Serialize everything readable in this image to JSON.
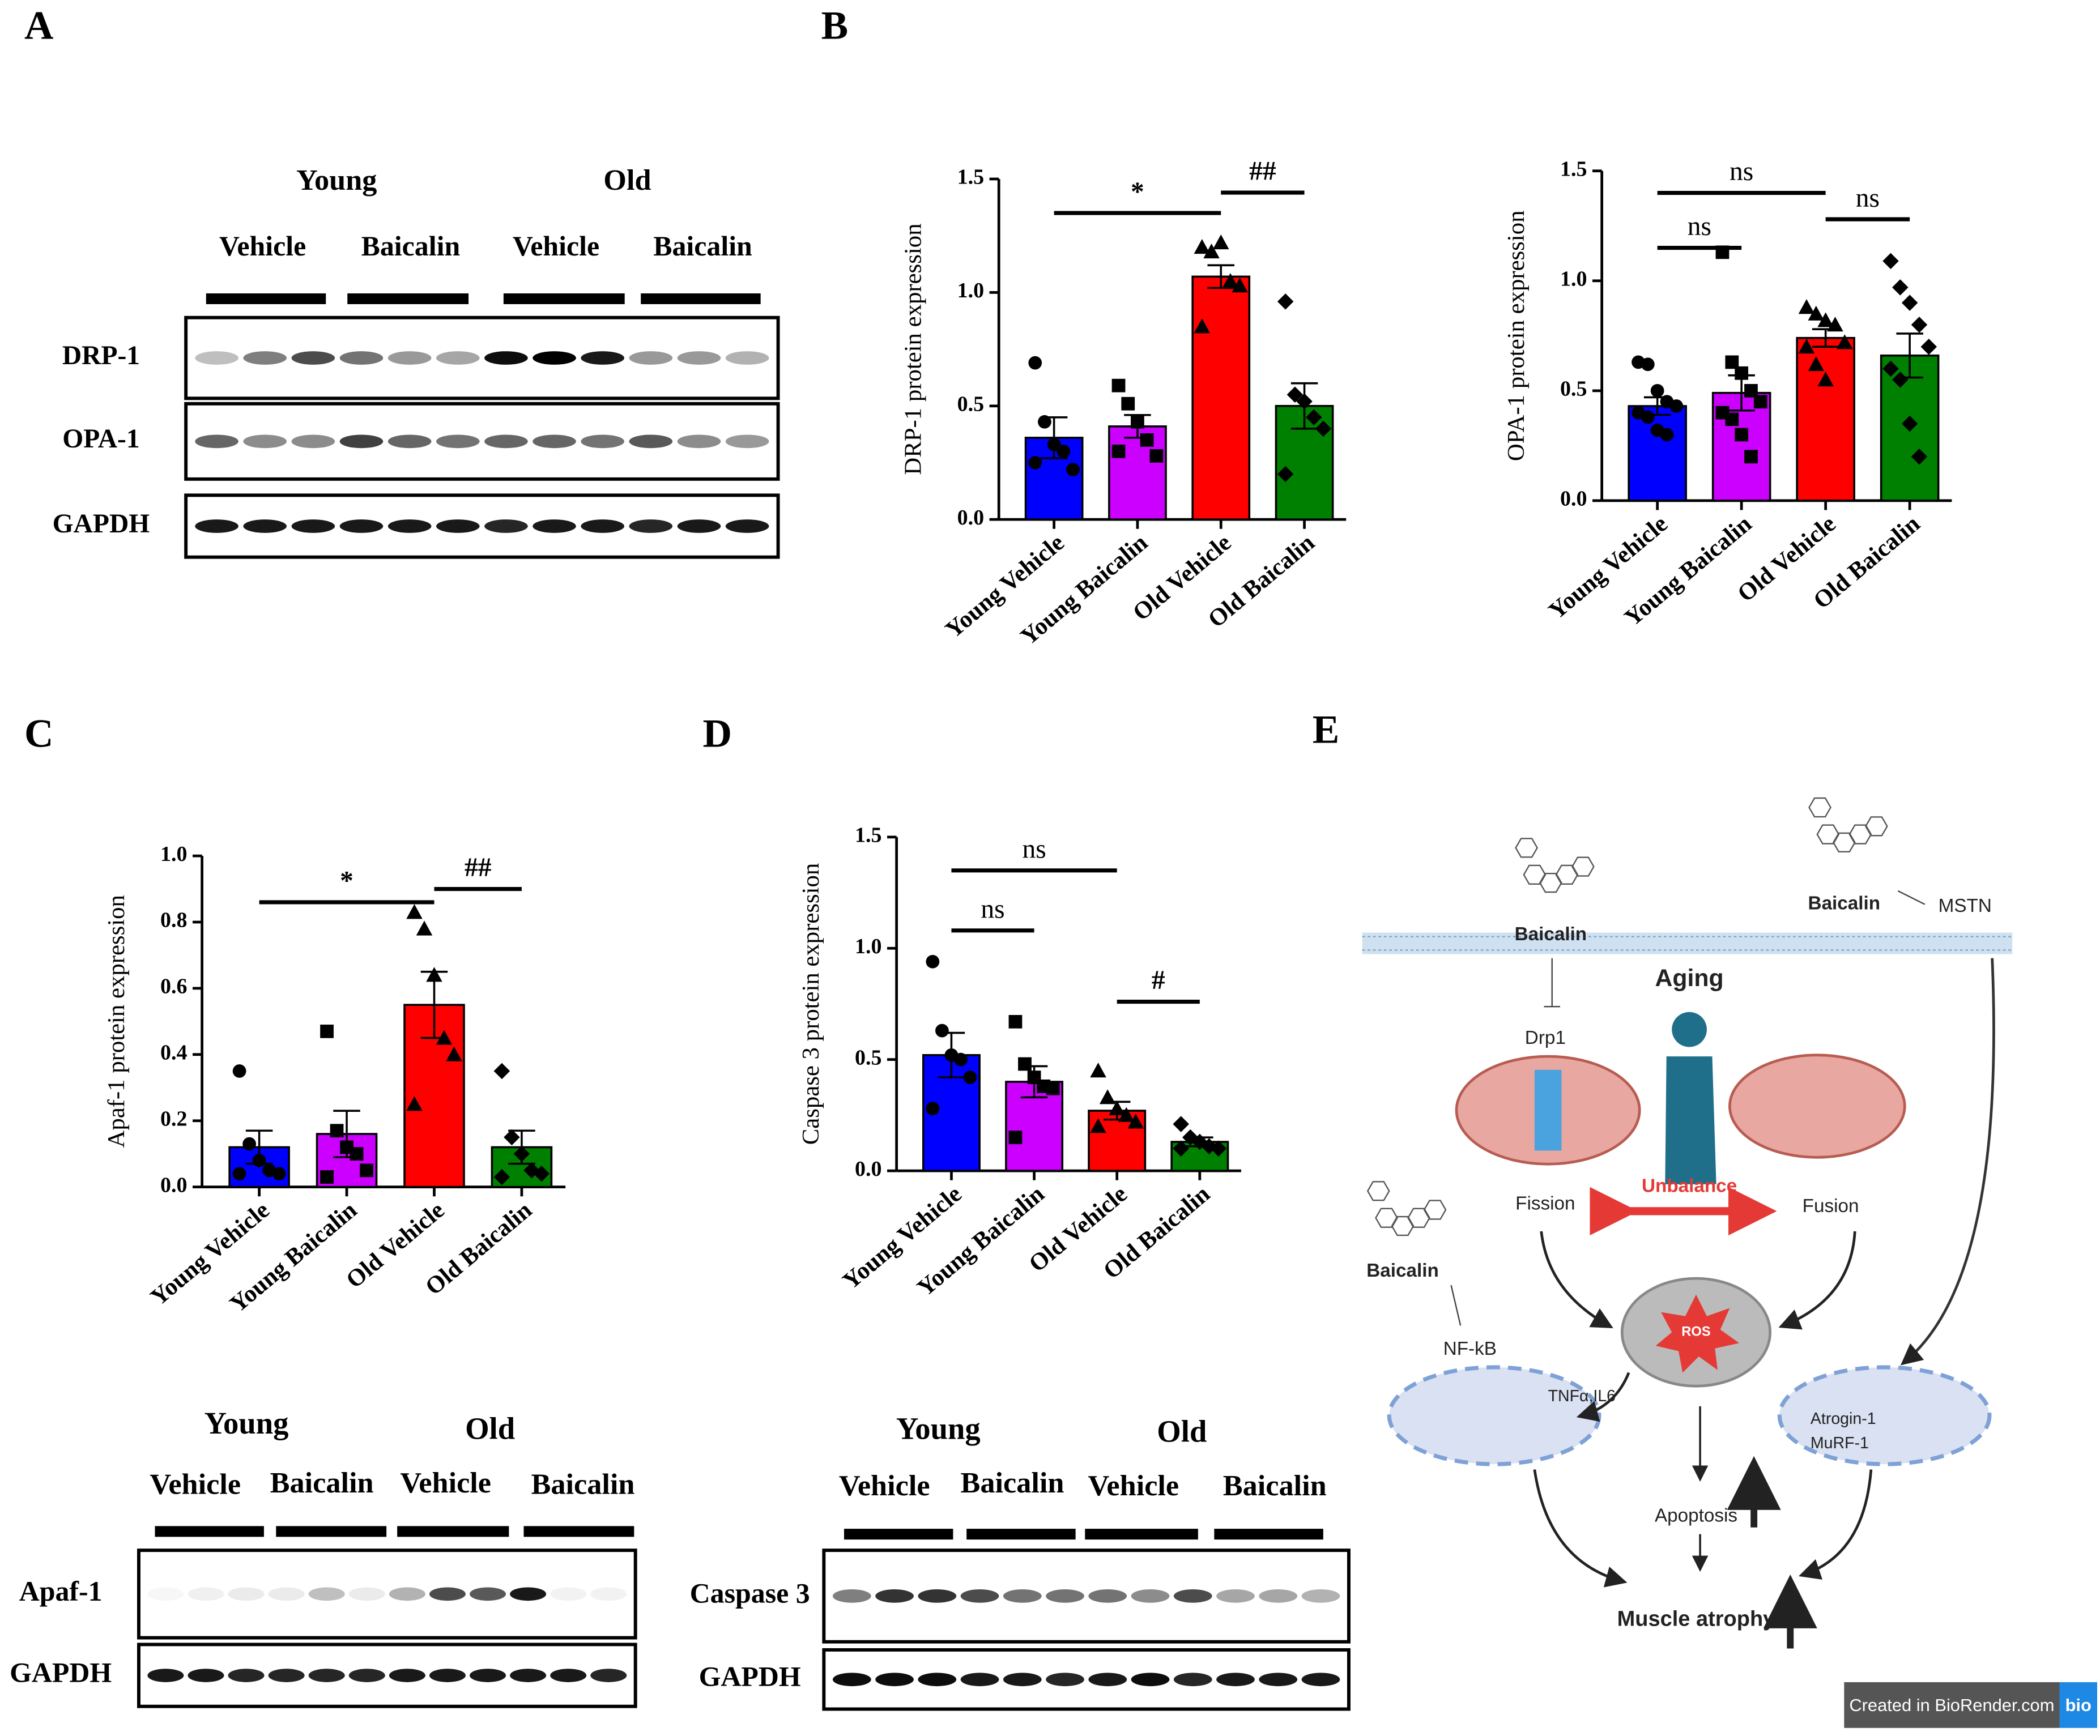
{
  "panel_labels": [
    "A",
    "B",
    "C",
    "D",
    "E"
  ],
  "chart_data": [
    {
      "type": "bar",
      "ylabel": "DRP-1 protein expression",
      "categories": [
        "Young Vehicle",
        "Young Baicalin",
        "Old Vehicle",
        "Old Baicalin"
      ],
      "values": [
        0.36,
        0.41,
        1.07,
        0.5
      ],
      "errors": [
        0.09,
        0.05,
        0.05,
        0.1
      ],
      "points": [
        [
          0.69,
          0.43,
          0.33,
          0.3,
          0.22,
          0.25
        ],
        [
          0.59,
          0.51,
          0.43,
          0.35,
          0.28,
          0.3
        ],
        [
          1.2,
          1.18,
          1.22,
          1.05,
          1.03,
          0.85
        ],
        [
          0.96,
          0.55,
          0.52,
          0.45,
          0.4,
          0.2
        ]
      ],
      "colors": [
        "#0000ff",
        "#cc00ff",
        "#ff0000",
        "#008000"
      ],
      "ylim": [
        0,
        1.5
      ],
      "yticks": [
        {
          "value": 0,
          "label": "0.0"
        },
        {
          "value": 0.5,
          "label": "0.5"
        },
        {
          "value": 1,
          "label": "1.0"
        },
        {
          "value": 1.5,
          "label": "1.5"
        }
      ],
      "annotations": [
        {
          "text": "*",
          "from": "Young Vehicle",
          "to": "Old Vehicle",
          "y": 1.35
        },
        {
          "text": "##",
          "from": "Old Vehicle",
          "to": "Old Baicalin",
          "y": 1.44
        }
      ]
    },
    {
      "type": "bar",
      "ylabel": "OPA-1 protein expression",
      "categories": [
        "Young Vehicle",
        "Young Baicalin",
        "Old Vehicle",
        "Old Baicalin"
      ],
      "values": [
        0.43,
        0.49,
        0.74,
        0.66
      ],
      "errors": [
        0.04,
        0.08,
        0.04,
        0.1
      ],
      "points": [
        [
          0.63,
          0.62,
          0.5,
          0.45,
          0.43,
          0.4,
          0.38,
          0.32,
          0.3
        ],
        [
          1.13,
          0.63,
          0.58,
          0.5,
          0.45,
          0.4,
          0.37,
          0.3,
          0.2
        ],
        [
          0.88,
          0.85,
          0.82,
          0.8,
          0.72,
          0.7,
          0.62,
          0.55
        ],
        [
          1.09,
          0.97,
          0.9,
          0.8,
          0.7,
          0.6,
          0.55,
          0.35,
          0.2
        ]
      ],
      "colors": [
        "#0000ff",
        "#cc00ff",
        "#ff0000",
        "#008000"
      ],
      "ylim": [
        0,
        1.5
      ],
      "yticks": [
        {
          "value": 0,
          "label": "0.0"
        },
        {
          "value": 0.5,
          "label": "0.5"
        },
        {
          "value": 1,
          "label": "1.0"
        },
        {
          "value": 1.5,
          "label": "1.5"
        }
      ],
      "annotations": [
        {
          "text": "ns",
          "from": "Young Vehicle",
          "to": "Old Vehicle",
          "y": 1.4
        },
        {
          "text": "ns",
          "from": "Young Vehicle",
          "to": "Young Baicalin",
          "y": 1.15
        },
        {
          "text": "ns",
          "from": "Old Vehicle",
          "to": "Old Baicalin",
          "y": 1.28
        }
      ]
    },
    {
      "type": "bar",
      "ylabel": "Apaf-1 protein expression",
      "categories": [
        "Young Vehicle",
        "Young Baicalin",
        "Old Vehicle",
        "Old Baicalin"
      ],
      "values": [
        0.12,
        0.16,
        0.55,
        0.12
      ],
      "errors": [
        0.05,
        0.07,
        0.1,
        0.05
      ],
      "points": [
        [
          0.35,
          0.13,
          0.08,
          0.05,
          0.04,
          0.04
        ],
        [
          0.47,
          0.17,
          0.12,
          0.1,
          0.05,
          0.03
        ],
        [
          0.83,
          0.78,
          0.64,
          0.45,
          0.4,
          0.25
        ],
        [
          0.35,
          0.15,
          0.1,
          0.05,
          0.04,
          0.03
        ]
      ],
      "colors": [
        "#0000ff",
        "#cc00ff",
        "#ff0000",
        "#008000"
      ],
      "ylim": [
        0,
        1
      ],
      "yticks": [
        {
          "value": 0,
          "label": "0.0"
        },
        {
          "value": 0.2,
          "label": "0.2"
        },
        {
          "value": 0.4,
          "label": "0.4"
        },
        {
          "value": 0.6,
          "label": "0.6"
        },
        {
          "value": 0.8,
          "label": "0.8"
        },
        {
          "value": 1,
          "label": "1.0"
        }
      ],
      "annotations": [
        {
          "text": "*",
          "from": "Young Vehicle",
          "to": "Old Vehicle",
          "y": 0.86
        },
        {
          "text": "##",
          "from": "Old Vehicle",
          "to": "Old Baicalin",
          "y": 0.9
        }
      ]
    },
    {
      "type": "bar",
      "ylabel": "Caspase 3 protein expression",
      "categories": [
        "Young Vehicle",
        "Young Baicalin",
        "Old Vehicle",
        "Old Baicalin"
      ],
      "values": [
        0.52,
        0.4,
        0.27,
        0.13
      ],
      "errors": [
        0.1,
        0.07,
        0.04,
        0.02
      ],
      "points": [
        [
          0.94,
          0.63,
          0.52,
          0.5,
          0.42,
          0.28
        ],
        [
          0.67,
          0.48,
          0.42,
          0.38,
          0.37,
          0.15
        ],
        [
          0.45,
          0.33,
          0.28,
          0.25,
          0.22,
          0.2
        ],
        [
          0.21,
          0.15,
          0.13,
          0.11,
          0.1,
          0.1
        ]
      ],
      "colors": [
        "#0000ff",
        "#cc00ff",
        "#ff0000",
        "#008000"
      ],
      "ylim": [
        0,
        1.5
      ],
      "yticks": [
        {
          "value": 0,
          "label": "0.0"
        },
        {
          "value": 0.5,
          "label": "0.5"
        },
        {
          "value": 1,
          "label": "1.0"
        },
        {
          "value": 1.5,
          "label": "1.5"
        }
      ],
      "annotations": [
        {
          "text": "ns",
          "from": "Young Vehicle",
          "to": "Old Vehicle",
          "y": 1.35
        },
        {
          "text": "ns",
          "from": "Young Vehicle",
          "to": "Young Baicalin",
          "y": 1.08
        },
        {
          "text": "#",
          "from": "Old Vehicle",
          "to": "Old Baicalin",
          "y": 0.76
        }
      ]
    }
  ],
  "blots": [
    {
      "groups": [
        "Young",
        "Old"
      ],
      "treatments": [
        "Vehicle",
        "Baicalin",
        "Vehicle",
        "Baicalin"
      ],
      "rows": [
        "DRP-1",
        "OPA-1",
        "GAPDH"
      ]
    },
    {
      "groups": [
        "Young",
        "Old"
      ],
      "treatments": [
        "Vehicle",
        "Baicalin",
        "Vehicle",
        "Baicalin"
      ],
      "rows": [
        "Apaf-1",
        "GAPDH"
      ]
    },
    {
      "groups": [
        "Young",
        "Old"
      ],
      "treatments": [
        "Vehicle",
        "Baicalin",
        "Vehicle",
        "Baicalin"
      ],
      "rows": [
        "Caspase 3",
        "GAPDH"
      ]
    }
  ],
  "diagram": {
    "baicalin": [
      "Baicalin",
      "Baicalin",
      "Baicalin"
    ],
    "mstn": "MSTN",
    "aging": "Aging",
    "drp1": "Drp1",
    "fission": "Fission",
    "unbalance": "Unbalance",
    "fusion": "Fusion",
    "nfkb": "NF-kB",
    "cytokines": "TNFα,IL6",
    "ros": "ROS",
    "atrogin": "Atrogin-1",
    "murf": "MuRF-1",
    "apoptosis": "Apoptosis",
    "atrophy": "Muscle atrophy",
    "credit": "Created in BioRender.com",
    "credit_logo": "bio"
  }
}
